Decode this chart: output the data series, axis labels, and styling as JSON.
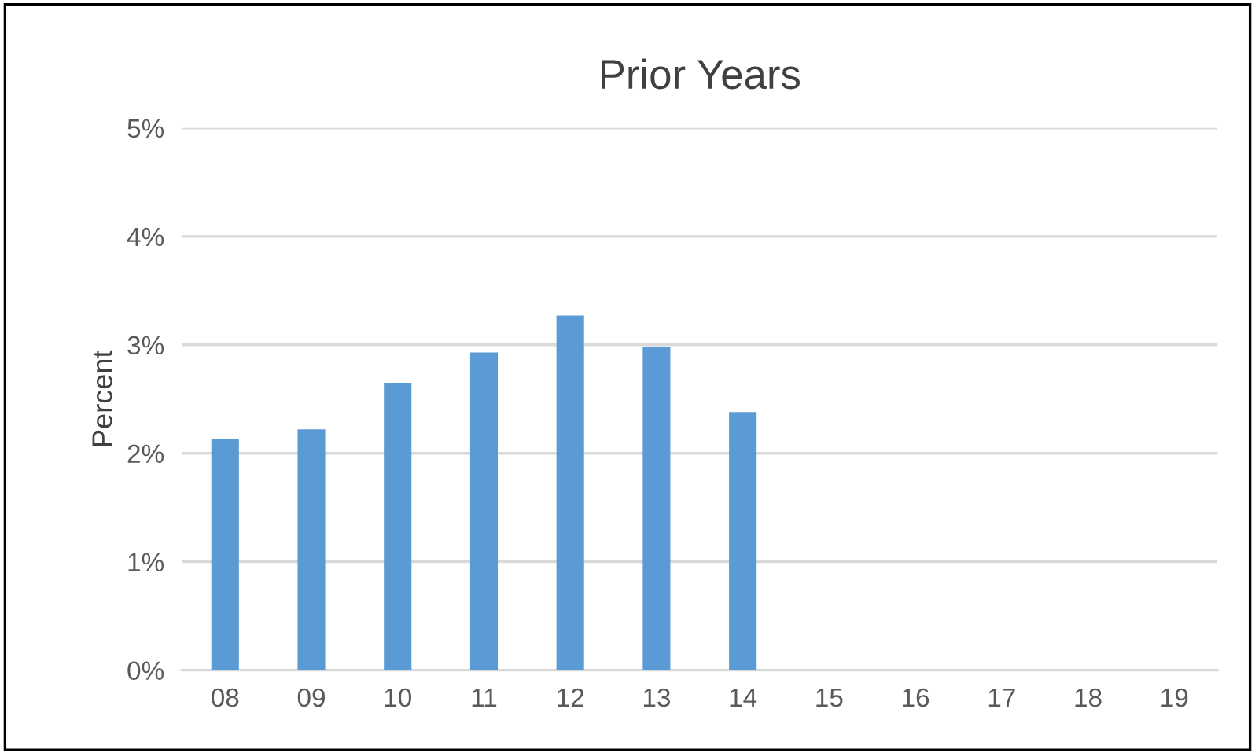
{
  "chart_data": {
    "type": "bar",
    "title": "Prior Years",
    "ylabel": "Percent",
    "categories": [
      "08",
      "09",
      "10",
      "11",
      "12",
      "13",
      "14",
      "15",
      "16",
      "17",
      "18",
      "19"
    ],
    "values": [
      2.13,
      2.22,
      2.65,
      2.93,
      3.27,
      2.98,
      2.38,
      null,
      null,
      null,
      null,
      null
    ],
    "color": "#5b9bd5",
    "ylim": [
      0,
      5
    ],
    "yticks": [
      {
        "value": 0,
        "label": "0%"
      },
      {
        "value": 1,
        "label": "1%"
      },
      {
        "value": 2,
        "label": "2%"
      },
      {
        "value": 3,
        "label": "3%"
      },
      {
        "value": 4,
        "label": "4%"
      },
      {
        "value": 5,
        "label": "5%"
      }
    ],
    "grid": "y",
    "legend": false
  }
}
